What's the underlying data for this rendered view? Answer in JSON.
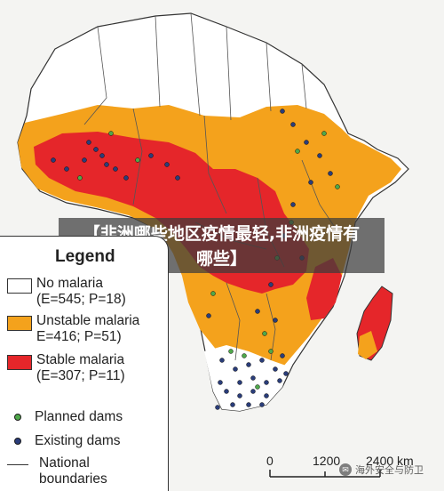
{
  "banner": {
    "line1": "【非洲哪些地区疫情最轻,非洲疫情有",
    "line2": "哪些】"
  },
  "legend": {
    "title": "Legend",
    "no_malaria": {
      "label": "No malaria",
      "stats": "(E=545; P=18)",
      "color": "#ffffff"
    },
    "unstable": {
      "label": "Unstable malaria",
      "stats": "E=416; P=51)",
      "color": "#f4a21c"
    },
    "stable": {
      "label": "Stable malaria",
      "stats": "(E=307; P=11)",
      "color": "#e5262a"
    },
    "planned_dams": {
      "label": "Planned dams",
      "color": "#4fa84a"
    },
    "existing_dams": {
      "label": "Existing dams",
      "color": "#2a3d7a"
    },
    "boundaries": {
      "label1": "National",
      "label2": "boundaries"
    }
  },
  "scale": {
    "t0": "0",
    "t1": "1200",
    "t2": "2400 km"
  },
  "watermark": {
    "text": "海外安全与防卫",
    "icon": "wechat-icon"
  }
}
